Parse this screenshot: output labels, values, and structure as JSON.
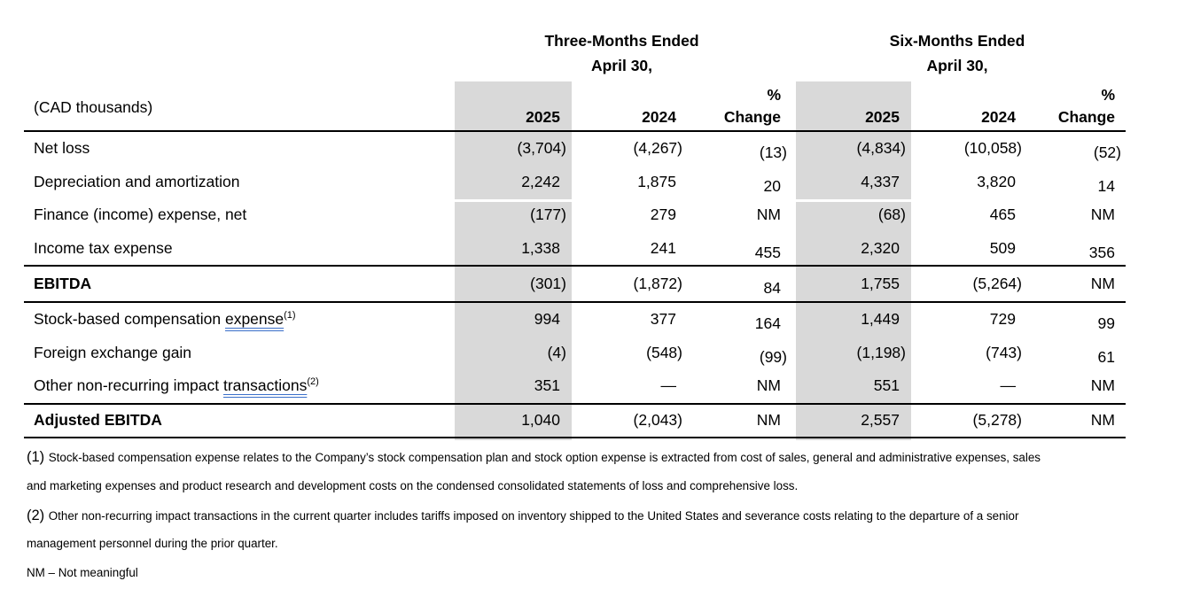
{
  "table": {
    "unit_label": "(CAD thousands)",
    "groups": [
      {
        "title": "Three-Months Ended",
        "subtitle": "April 30,"
      },
      {
        "title": "Six-Months Ended",
        "subtitle": "April 30,"
      }
    ],
    "col_headers": {
      "year_current": "2025",
      "year_prior": "2024",
      "pct_line1": "%",
      "pct_line2": "Change"
    },
    "sections": [
      {
        "rows": [
          {
            "label": "Net loss",
            "values": [
              "(3,704)",
              "(4,267)",
              "(13)",
              "(4,834)",
              "(10,058)",
              "(52)"
            ]
          },
          {
            "label": "Depreciation and amortization",
            "values": [
              "2,242",
              "1,875",
              "20",
              "4,337",
              "3,820",
              "14"
            ]
          },
          {
            "label": "Finance (income) expense, net",
            "values": [
              "(177)",
              "279",
              "NM",
              "(68)",
              "465",
              "NM"
            ]
          },
          {
            "label": "Income tax expense",
            "values": [
              "1,338",
              "241",
              "455",
              "2,320",
              "509",
              "356"
            ]
          }
        ]
      },
      {
        "rows": [
          {
            "label": "EBITDA",
            "bold": true,
            "values": [
              "(301)",
              "(1,872)",
              "84",
              "1,755",
              "(5,264)",
              "NM"
            ]
          }
        ]
      },
      {
        "rows": [
          {
            "label_pre": "Stock-based compensation ",
            "label_underlined": "expense",
            "sup": "(1)",
            "values": [
              "994",
              "377",
              "164",
              "1,449",
              "729",
              "99"
            ]
          },
          {
            "label": "Foreign exchange gain",
            "values": [
              "(4)",
              "(548)",
              "(99)",
              "(1,198)",
              "(743)",
              "61"
            ]
          },
          {
            "label_pre": "Other non-recurring impact ",
            "label_underlined": "transactions",
            "sup": "(2)",
            "values": [
              "351",
              "—",
              "NM",
              "551",
              "—",
              "NM"
            ]
          }
        ]
      },
      {
        "rows": [
          {
            "label": "Adjusted EBITDA",
            "bold": true,
            "values": [
              "1,040",
              "(2,043)",
              "NM",
              "2,557",
              "(5,278)",
              "NM"
            ]
          }
        ]
      }
    ]
  },
  "footnotes": [
    {
      "marker": "(1)",
      "lines": [
        "Stock-based compensation expense relates to the Company’s stock compensation plan and stock option expense is extracted from cost of sales, general and administrative expenses, sales",
        "and marketing expenses and product research and development costs on the condensed consolidated statements of loss and comprehensive loss."
      ]
    },
    {
      "marker": "(2)",
      "lines": [
        "Other non-recurring impact transactions in the current quarter includes tariffs imposed on inventory shipped to the United States and severance costs relating to the departure of a senior",
        "management personnel during the prior quarter."
      ]
    }
  ],
  "legend": "NM – Not meaningful",
  "colors": {
    "shade": "#d9d9d9",
    "underline_blue": "#3a6fc9",
    "rule_line": "#000000",
    "text": "#000000"
  }
}
